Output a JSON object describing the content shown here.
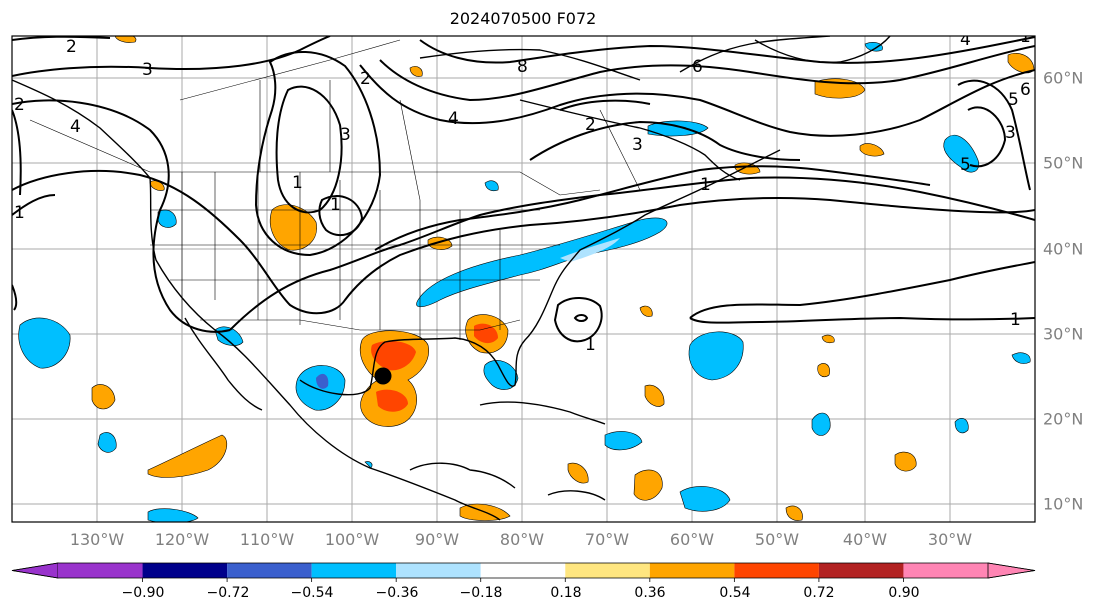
{
  "title": "2024070500 F072",
  "map": {
    "lon_labels": [
      "130°W",
      "120°W",
      "110°W",
      "100°W",
      "90°W",
      "80°W",
      "70°W",
      "60°W",
      "50°W",
      "40°W",
      "30°W"
    ],
    "lat_labels": [
      "60°N",
      "50°N",
      "40°N",
      "30°N",
      "20°N",
      "10°N"
    ],
    "contour_labels": [
      "2",
      "3",
      "4",
      "2",
      "2",
      "3",
      "1",
      "1",
      "6",
      "8",
      "5",
      "2",
      "3",
      "1",
      "4",
      "5",
      "3",
      "4",
      "6",
      "1",
      "1",
      "1",
      "1"
    ],
    "storm_marker": "storm-center-dot"
  },
  "colorbar": {
    "tick_labels": [
      "−0.90",
      "−0.72",
      "−0.54",
      "−0.36",
      "−0.18",
      "0.18",
      "0.36",
      "0.54",
      "0.72",
      "0.90"
    ],
    "colors": [
      "#9933cc",
      "#00008b",
      "#3a5fcd",
      "#00bfff",
      "#aee3ff",
      "#ffffff",
      "#ffe680",
      "#ffa500",
      "#ff4500",
      "#b22222",
      "#ff85b4"
    ]
  }
}
